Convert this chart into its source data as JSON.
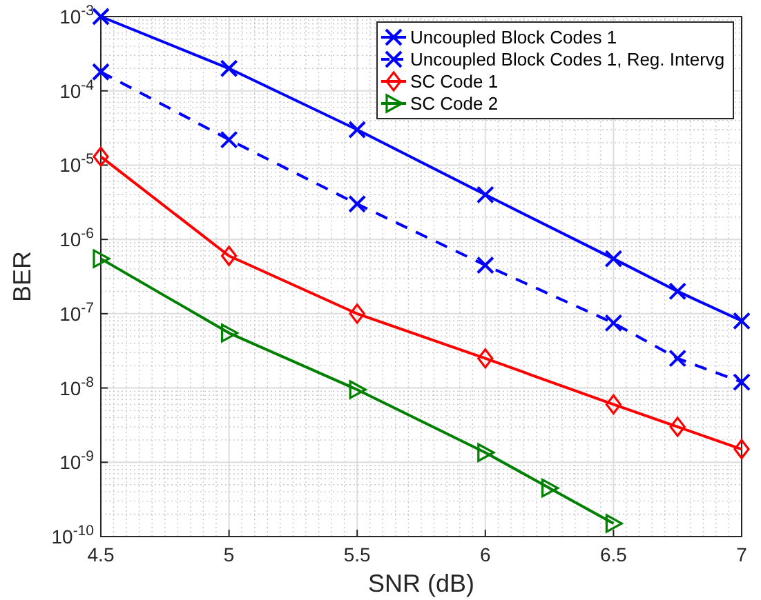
{
  "chart_data": {
    "type": "line",
    "xlabel": "SNR (dB)",
    "ylabel": "BER",
    "log": "y",
    "grid": true,
    "legend": "top right",
    "xlim": [
      4.5,
      7
    ],
    "xticks": [
      4.5,
      5,
      5.5,
      6,
      6.5,
      7
    ],
    "ylim": [
      1e-10,
      0.001
    ],
    "yticks": [
      {
        "value": 1e-10,
        "label": "10$^{-10}$"
      },
      {
        "value": 1e-09,
        "label": "10$^{-9}$"
      },
      {
        "value": 1e-08,
        "label": "10$^{-8}$"
      },
      {
        "value": 1e-07,
        "label": "10$^{-7}$"
      },
      {
        "value": 1e-06,
        "label": "10$^{-6}$"
      },
      {
        "value": 1e-05,
        "label": "10$^{-5}$"
      },
      {
        "value": 0.0001,
        "label": "10$^{-4}$"
      },
      {
        "value": 0.001,
        "label": "10$^{-3}$"
      }
    ],
    "series": [
      {
        "name": "Uncoupled Block Codes 1",
        "color": "#0000ff",
        "marker": "cross",
        "line_style": "solid",
        "x": [
          4.5,
          5,
          5.5,
          6,
          6.5,
          6.75,
          7
        ],
        "values": [
          0.001,
          0.0002,
          3e-05,
          4e-06,
          5.5e-07,
          2e-07,
          8e-08
        ]
      },
      {
        "name": "Uncoupled Block Codes 1, Reg. Intervg",
        "color": "#0000ff",
        "marker": "cross",
        "line_style": "dashed",
        "x": [
          4.5,
          5,
          5.5,
          6,
          6.5,
          6.75,
          7
        ],
        "values": [
          0.00018,
          2.2e-05,
          3e-06,
          4.5e-07,
          7.5e-08,
          2.5e-08,
          1.2e-08
        ]
      },
      {
        "name": "SC Code 1",
        "color": "#ff0000",
        "marker": "diamond",
        "line_style": "solid",
        "x": [
          4.5,
          5,
          5.5,
          6,
          6.5,
          6.75,
          7
        ],
        "values": [
          1.3e-05,
          6e-07,
          1e-07,
          2.5e-08,
          6e-09,
          3e-09,
          1.5e-09
        ]
      },
      {
        "name": "SC Code 2",
        "color": "#008000",
        "marker": "triangle",
        "line_style": "solid",
        "x": [
          4.5,
          5,
          5.5,
          6,
          6.25,
          6.5
        ],
        "values": [
          5.5e-07,
          5.5e-08,
          9.5e-09,
          1.35e-09,
          4.5e-10,
          1.5e-10
        ]
      }
    ]
  }
}
